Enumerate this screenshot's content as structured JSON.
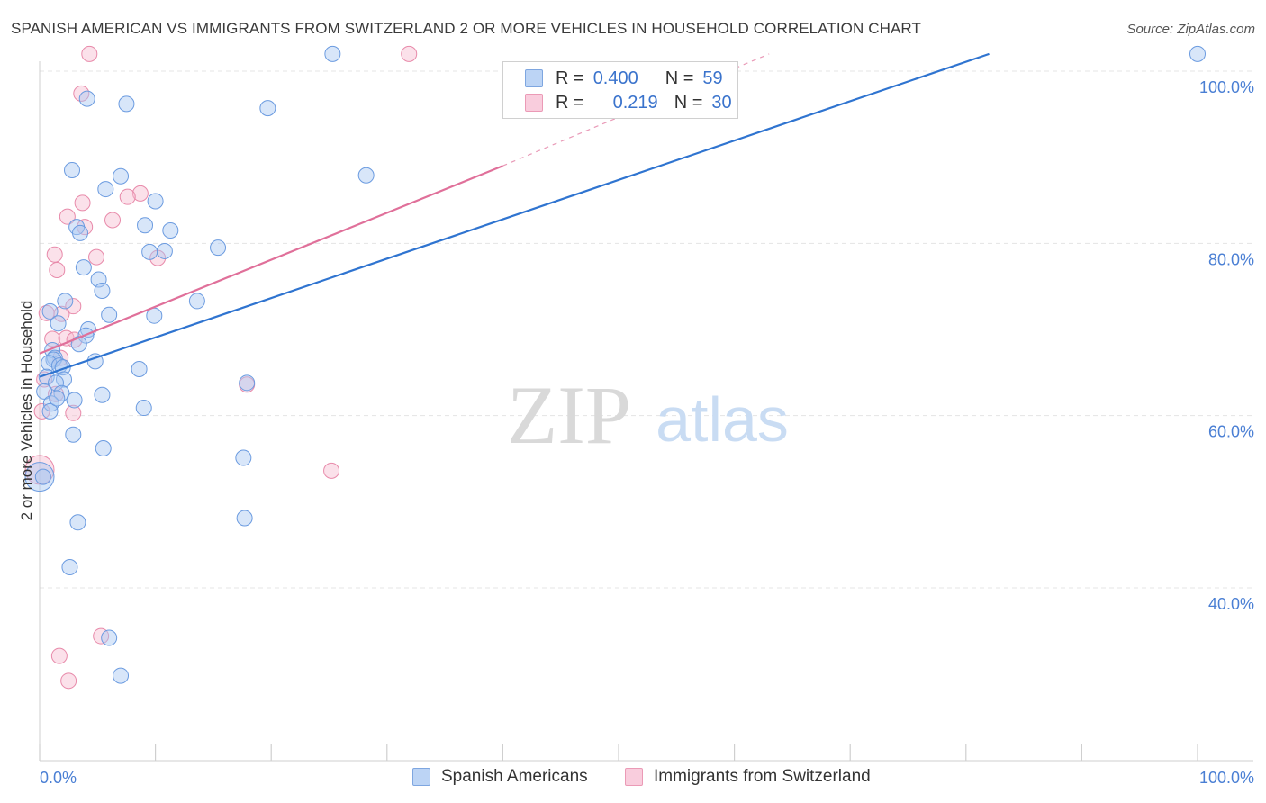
{
  "header": {
    "title": "SPANISH AMERICAN VS IMMIGRANTS FROM SWITZERLAND 2 OR MORE VEHICLES IN HOUSEHOLD CORRELATION CHART",
    "source": "Source: ZipAtlas.com"
  },
  "watermark": {
    "zip": "ZIP",
    "atlas": "atlas"
  },
  "legend": {
    "series1": {
      "r_label": "R =",
      "r_value": "0.400",
      "n_label": "N =",
      "n_value": "59"
    },
    "series2": {
      "r_label": "R =",
      "r_value": "0.219",
      "n_label": "N =",
      "n_value": "30"
    }
  },
  "colors": {
    "blue_fill": "#a9c8f2",
    "blue_stroke": "#6b9be0",
    "blue_line": "#2f74d0",
    "pink_fill": "#f6bcd0",
    "pink_stroke": "#e88aaa",
    "pink_line": "#e0709a",
    "grid": "#e4e4e4",
    "tick_text": "#4a7fd4"
  },
  "chart_data": {
    "type": "scatter",
    "title": "SPANISH AMERICAN VS IMMIGRANTS FROM SWITZERLAND 2 OR MORE VEHICLES IN HOUSEHOLD CORRELATION CHART",
    "xlabel": "",
    "ylabel": "2 or more Vehicles in Household",
    "xlim": [
      0,
      100
    ],
    "ylim": [
      20,
      102
    ],
    "x_tick_labels": [
      "0.0%",
      "100.0%"
    ],
    "y_ticks": [
      {
        "value": 40,
        "label": "40.0%"
      },
      {
        "value": 60,
        "label": "60.0%"
      },
      {
        "value": 80,
        "label": "80.0%"
      },
      {
        "value": 100,
        "label": "100.0%"
      }
    ],
    "legend_position": "bottom-center",
    "series": [
      {
        "name": "Spanish Americans",
        "color": "#a9c8f2",
        "r": 0.4,
        "n": 59,
        "trend": {
          "x": [
            0,
            82
          ],
          "y": [
            64.5,
            102
          ]
        },
        "points": [
          {
            "x": 25.3,
            "y": 102
          },
          {
            "x": 100,
            "y": 102
          },
          {
            "x": 4.1,
            "y": 96.8
          },
          {
            "x": 7.5,
            "y": 96.2
          },
          {
            "x": 19.7,
            "y": 95.7
          },
          {
            "x": 2.8,
            "y": 88.5
          },
          {
            "x": 7.0,
            "y": 87.8
          },
          {
            "x": 28.2,
            "y": 87.9
          },
          {
            "x": 5.7,
            "y": 86.3
          },
          {
            "x": 10.0,
            "y": 84.9
          },
          {
            "x": 3.2,
            "y": 81.9
          },
          {
            "x": 9.1,
            "y": 82.1
          },
          {
            "x": 3.5,
            "y": 81.2
          },
          {
            "x": 11.3,
            "y": 81.5
          },
          {
            "x": 15.4,
            "y": 79.5
          },
          {
            "x": 10.8,
            "y": 79.1
          },
          {
            "x": 9.5,
            "y": 79.0
          },
          {
            "x": 3.8,
            "y": 77.2
          },
          {
            "x": 5.1,
            "y": 75.8
          },
          {
            "x": 5.4,
            "y": 74.5
          },
          {
            "x": 2.2,
            "y": 73.3
          },
          {
            "x": 13.6,
            "y": 73.3
          },
          {
            "x": 0.9,
            "y": 72.1
          },
          {
            "x": 6.0,
            "y": 71.7
          },
          {
            "x": 9.9,
            "y": 71.6
          },
          {
            "x": 1.6,
            "y": 70.7
          },
          {
            "x": 4.2,
            "y": 70.0
          },
          {
            "x": 4.0,
            "y": 69.3
          },
          {
            "x": 3.4,
            "y": 68.3
          },
          {
            "x": 1.1,
            "y": 67.6
          },
          {
            "x": 1.3,
            "y": 66.7
          },
          {
            "x": 1.2,
            "y": 66.5
          },
          {
            "x": 0.8,
            "y": 66.1
          },
          {
            "x": 1.7,
            "y": 65.8
          },
          {
            "x": 2.0,
            "y": 65.6
          },
          {
            "x": 4.8,
            "y": 66.3
          },
          {
            "x": 8.6,
            "y": 65.4
          },
          {
            "x": 0.6,
            "y": 64.5
          },
          {
            "x": 2.1,
            "y": 64.2
          },
          {
            "x": 1.4,
            "y": 63.8
          },
          {
            "x": 17.9,
            "y": 63.8
          },
          {
            "x": 0.4,
            "y": 62.8
          },
          {
            "x": 1.9,
            "y": 62.6
          },
          {
            "x": 5.4,
            "y": 62.4
          },
          {
            "x": 1.0,
            "y": 61.4
          },
          {
            "x": 9.0,
            "y": 60.9
          },
          {
            "x": 2.9,
            "y": 57.8
          },
          {
            "x": 5.5,
            "y": 56.2
          },
          {
            "x": 0.0,
            "y": 52.9
          },
          {
            "x": 17.6,
            "y": 55.1
          },
          {
            "x": 3.3,
            "y": 47.6
          },
          {
            "x": 17.7,
            "y": 48.1
          },
          {
            "x": 2.6,
            "y": 42.4
          },
          {
            "x": 6.0,
            "y": 34.2
          },
          {
            "x": 7.0,
            "y": 29.8
          },
          {
            "x": 0.3,
            "y": 52.9
          },
          {
            "x": 0.9,
            "y": 60.5
          },
          {
            "x": 1.5,
            "y": 62.0
          },
          {
            "x": 3.0,
            "y": 61.8
          }
        ]
      },
      {
        "name": "Immigrants from Switzerland",
        "color": "#f6bcd0",
        "r": 0.219,
        "n": 30,
        "trend": {
          "x": [
            0,
            40
          ],
          "y": [
            67.2,
            89.0
          ]
        },
        "trend_extended": {
          "x": [
            40,
            63
          ],
          "y": [
            89.0,
            102
          ]
        },
        "points": [
          {
            "x": 4.3,
            "y": 102
          },
          {
            "x": 31.9,
            "y": 102
          },
          {
            "x": 3.6,
            "y": 97.4
          },
          {
            "x": 8.7,
            "y": 85.8
          },
          {
            "x": 7.6,
            "y": 85.4
          },
          {
            "x": 3.7,
            "y": 84.7
          },
          {
            "x": 2.4,
            "y": 83.1
          },
          {
            "x": 6.3,
            "y": 82.7
          },
          {
            "x": 3.9,
            "y": 81.9
          },
          {
            "x": 1.3,
            "y": 78.7
          },
          {
            "x": 4.9,
            "y": 78.4
          },
          {
            "x": 10.2,
            "y": 78.3
          },
          {
            "x": 1.5,
            "y": 76.9
          },
          {
            "x": 2.9,
            "y": 72.7
          },
          {
            "x": 0.6,
            "y": 71.9
          },
          {
            "x": 1.9,
            "y": 71.8
          },
          {
            "x": 1.1,
            "y": 68.9
          },
          {
            "x": 2.3,
            "y": 69.0
          },
          {
            "x": 3.0,
            "y": 68.8
          },
          {
            "x": 1.8,
            "y": 66.7
          },
          {
            "x": 0.4,
            "y": 64.2
          },
          {
            "x": 17.9,
            "y": 63.6
          },
          {
            "x": 1.4,
            "y": 62.5
          },
          {
            "x": 0.2,
            "y": 60.5
          },
          {
            "x": 2.9,
            "y": 60.3
          },
          {
            "x": 0.0,
            "y": 53.7
          },
          {
            "x": 25.2,
            "y": 53.6
          },
          {
            "x": 5.3,
            "y": 34.4
          },
          {
            "x": 1.7,
            "y": 32.1
          },
          {
            "x": 2.5,
            "y": 29.2
          }
        ]
      }
    ]
  },
  "bottom_legend": {
    "series1_label": "Spanish Americans",
    "series2_label": "Immigrants from Switzerland"
  }
}
